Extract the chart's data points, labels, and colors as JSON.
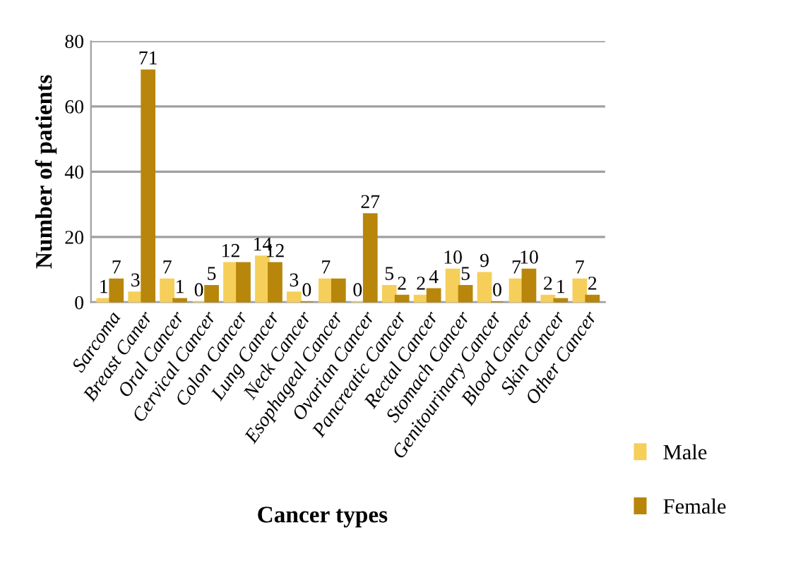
{
  "chart_data": {
    "type": "bar",
    "xlabel": "Cancer types",
    "ylabel": "Number of patients",
    "categories": [
      "Sarcoma",
      "Breast Caner",
      "Oral Cancer",
      "Cervical Cancer",
      "Colon Cancer",
      "Lung Cancer",
      "Neck Cancer",
      "Esophageal Cancer",
      "Ovarian Cancer",
      "Pancreatic Cancer",
      "Rectal Cancer",
      "Stomach Cancer",
      "Genitourinary Cancer",
      "Blood Cancer",
      "Skin Cancer",
      "Other Cancer"
    ],
    "series": [
      {
        "name": "Male",
        "color": "#f5cf5a",
        "values": [
          1,
          3,
          7,
          0,
          12,
          14,
          3,
          7,
          0,
          5,
          2,
          10,
          9,
          7,
          2,
          7
        ],
        "value_labels": [
          "1",
          "3",
          "7",
          "0",
          "12",
          "14",
          "3",
          "7",
          "0",
          "5",
          "2",
          "10",
          "9",
          "7",
          "2",
          "7"
        ]
      },
      {
        "name": "Female",
        "color": "#b8860b",
        "values": [
          7,
          71,
          1,
          5,
          12,
          12,
          0,
          7,
          27,
          2,
          4,
          5,
          0,
          10,
          1,
          2
        ],
        "value_labels": [
          "7",
          "71",
          "1",
          "5",
          null,
          "12",
          "0",
          null,
          "27",
          "2",
          "4",
          "5",
          "0",
          "10",
          "1",
          "2"
        ]
      }
    ],
    "ylim": [
      0,
      80
    ],
    "yticks": [
      0,
      20,
      40,
      60,
      80
    ],
    "grid": "y",
    "legend": "bottom right"
  }
}
